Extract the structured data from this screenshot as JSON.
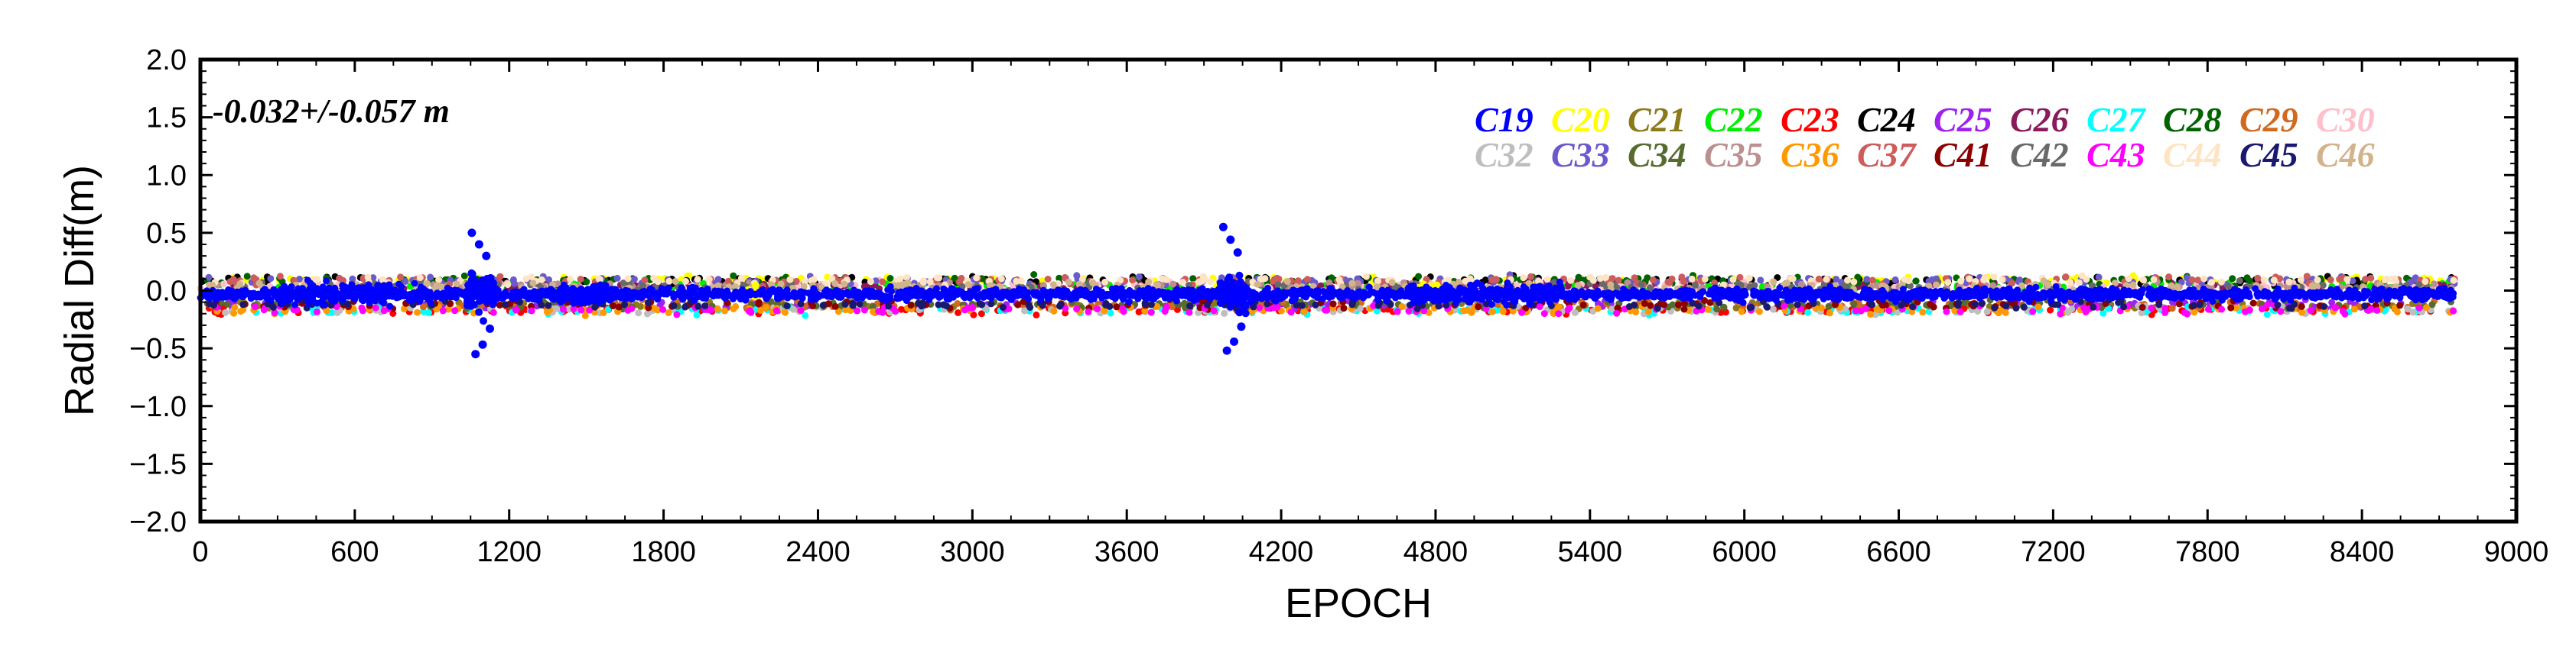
{
  "chart_data": {
    "type": "scatter",
    "title": "",
    "xlabel": "EPOCH",
    "ylabel": "Radial Diff(m)",
    "xlim": [
      0,
      9000
    ],
    "ylim": [
      -2.0,
      2.0
    ],
    "xticks": [
      0,
      600,
      1200,
      1800,
      2400,
      3000,
      3600,
      4200,
      4800,
      5400,
      6000,
      6600,
      7200,
      7800,
      8400,
      9000
    ],
    "yticks": [
      "2.0",
      "1.5",
      "1.0",
      "0.5",
      "0.0",
      "−0.5",
      "−1.0",
      "−1.5",
      "−2.0"
    ],
    "ytick_values": [
      2.0,
      1.5,
      1.0,
      0.5,
      0.0,
      -0.5,
      -1.0,
      -1.5,
      -2.0
    ],
    "annotation": "-0.032+/-0.057 m",
    "data_range": {
      "x_min": 0,
      "x_max": 8760,
      "typical_band": [
        -0.2,
        0.15
      ]
    },
    "outlier_bursts": [
      {
        "name": "C19",
        "center_epoch": 1090,
        "peak_high": 0.5,
        "peak_low": -0.55
      },
      {
        "name": "C19",
        "center_epoch": 4010,
        "peak_high": 0.55,
        "peak_low": -0.52
      }
    ],
    "series": [
      {
        "name": "C19",
        "color": "#0000ff"
      },
      {
        "name": "C20",
        "color": "#ffff00"
      },
      {
        "name": "C21",
        "color": "#8b7a1a"
      },
      {
        "name": "C22",
        "color": "#00ee00"
      },
      {
        "name": "C23",
        "color": "#ff0000"
      },
      {
        "name": "C24",
        "color": "#000000"
      },
      {
        "name": "C25",
        "color": "#a020f0"
      },
      {
        "name": "C26",
        "color": "#8b1a5a"
      },
      {
        "name": "C27",
        "color": "#00ffff"
      },
      {
        "name": "C28",
        "color": "#006400"
      },
      {
        "name": "C29",
        "color": "#d2691e"
      },
      {
        "name": "C30",
        "color": "#ffc0cb"
      },
      {
        "name": "C32",
        "color": "#bebebe"
      },
      {
        "name": "C33",
        "color": "#6a5acd"
      },
      {
        "name": "C34",
        "color": "#556b2f"
      },
      {
        "name": "C35",
        "color": "#bc8f8f"
      },
      {
        "name": "C36",
        "color": "#ff9900"
      },
      {
        "name": "C37",
        "color": "#cd5c5c"
      },
      {
        "name": "C41",
        "color": "#8b0000"
      },
      {
        "name": "C42",
        "color": "#696969"
      },
      {
        "name": "C43",
        "color": "#ff00ff"
      },
      {
        "name": "C44",
        "color": "#ffe4c4"
      },
      {
        "name": "C45",
        "color": "#191970"
      },
      {
        "name": "C46",
        "color": "#d2b48c"
      }
    ]
  }
}
